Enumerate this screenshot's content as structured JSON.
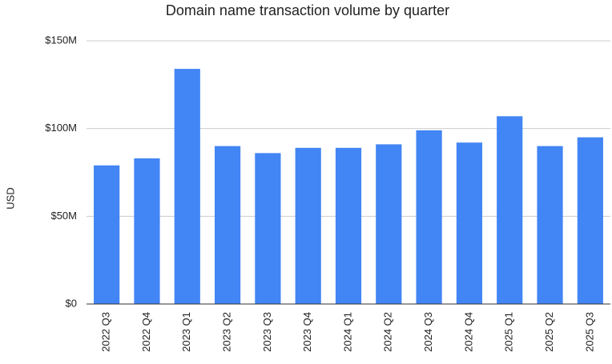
{
  "chart_data": {
    "type": "bar",
    "title": "Domain name transaction volume by quarter",
    "y_label": "USD",
    "categories": [
      "2022 Q3",
      "2022 Q4",
      "2023 Q1",
      "2023 Q2",
      "2023 Q3",
      "2023 Q4",
      "2024 Q1",
      "2024 Q2",
      "2024 Q3",
      "2024 Q4",
      "2025 Q1",
      "2025 Q2",
      "2025 Q3"
    ],
    "values": [
      79000000,
      83000000,
      134000000,
      90000000,
      86000000,
      89000000,
      89000000,
      91000000,
      99000000,
      92000000,
      107000000,
      90000000,
      95000000
    ],
    "color": "#4285f4",
    "ylim": [
      0,
      150000000
    ],
    "yticks": [
      {
        "value": 0,
        "label": "$0"
      },
      {
        "value": 50000000,
        "label": "$50M"
      },
      {
        "value": 100000000,
        "label": "$100M"
      },
      {
        "value": 150000000,
        "label": "$150M"
      }
    ],
    "grid": true
  }
}
